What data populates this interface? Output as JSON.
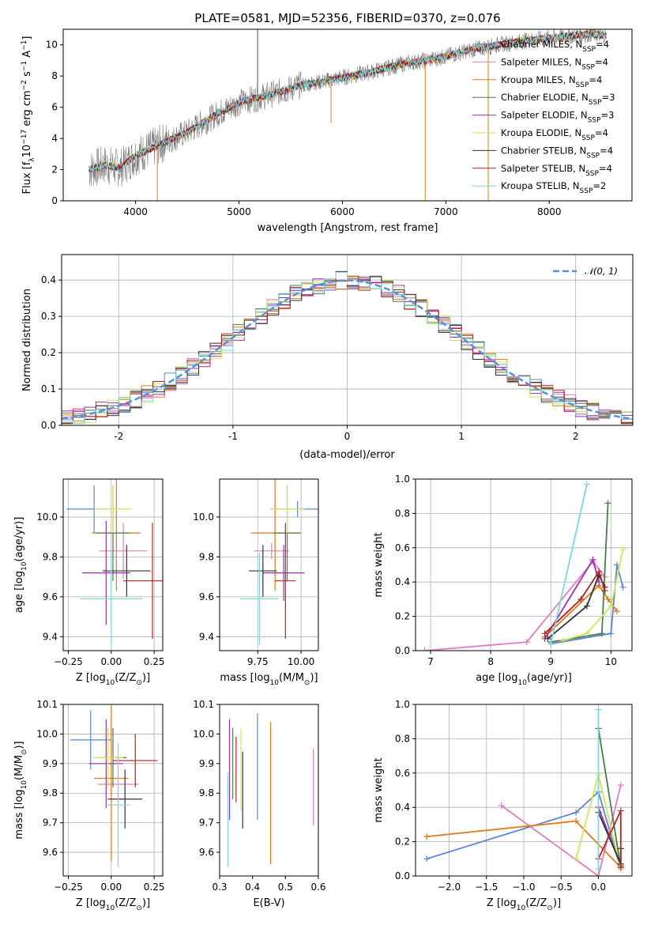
{
  "colors": {
    "Chabrier MILES": "#5b86d6",
    "Salpeter MILES": "#e07fbf",
    "Kroupa MILES": "#e07a1a",
    "Chabrier ELODIE": "#4a7d4a",
    "Salpeter ELODIE": "#9b2fae",
    "Kroupa ELODIE": "#cfe85a",
    "Chabrier STELIB": "#333333",
    "Salpeter STELIB": "#b22222",
    "Kroupa STELIB": "#7fd6dc",
    "normal": "#5b8fd6",
    "data": "#808080"
  },
  "chart_data": [
    {
      "type": "line",
      "title": "PLATE=0581, MJD=52356, FIBERID=0370, z=0.076",
      "xlabel": "wavelength [Angstrom, rest frame]",
      "ylabel": "Flux [f",
      "ylabel_parts": [
        "Flux [f",
        "λ",
        "10",
        "−17",
        " erg cm",
        "−2",
        " s",
        "−1",
        " A",
        "−1",
        "]"
      ],
      "xlim": [
        3300,
        8800
      ],
      "ylim": [
        0,
        11
      ],
      "xticks": [
        4000,
        5000,
        6000,
        7000,
        8000
      ],
      "yticks": [
        0,
        2,
        4,
        6,
        8,
        10
      ],
      "grid": false,
      "legend_position": "right",
      "legend": [
        {
          "name": "Chabrier MILES",
          "nssp": "4"
        },
        {
          "name": "Salpeter MILES",
          "nssp": "4"
        },
        {
          "name": "Kroupa MILES",
          "nssp": "4"
        },
        {
          "name": "Chabrier ELODIE",
          "nssp": "3"
        },
        {
          "name": "Salpeter ELODIE",
          "nssp": "3"
        },
        {
          "name": "Kroupa ELODIE",
          "nssp": "4"
        },
        {
          "name": "Chabrier STELIB",
          "nssp": "4"
        },
        {
          "name": "Salpeter STELIB",
          "nssp": "4"
        },
        {
          "name": "Kroupa STELIB",
          "nssp": "2"
        }
      ],
      "legend_sub": "SSP",
      "legend_prefix": ", N",
      "continuum": {
        "x": [
          3550,
          3700,
          3850,
          4000,
          4200,
          4500,
          4800,
          5000,
          5300,
          5600,
          6000,
          6300,
          6600,
          6900,
          7200,
          7500,
          7800,
          8100,
          8400,
          8550
        ],
        "y": [
          2.0,
          2.3,
          2.1,
          2.9,
          3.5,
          4.4,
          5.6,
          6.3,
          6.8,
          7.4,
          7.9,
          8.3,
          8.8,
          9.1,
          9.6,
          10.0,
          10.3,
          10.5,
          10.7,
          10.6
        ]
      },
      "spikes": [
        {
          "x": 5180,
          "y": 11
        },
        {
          "x": 4210,
          "y": 0
        },
        {
          "x": 6800,
          "y": 0
        },
        {
          "x": 7410,
          "y": 0
        },
        {
          "x": 5890,
          "y": 5.0
        }
      ]
    },
    {
      "type": "bar",
      "xlabel": "(data-model)/error",
      "ylabel": "Normed distribution",
      "xlim": [
        -2.5,
        2.5
      ],
      "ylim": [
        0,
        0.47
      ],
      "xticks": [
        -2,
        -1,
        0,
        1,
        2
      ],
      "yticks": [
        0.0,
        0.1,
        0.2,
        0.3,
        0.4
      ],
      "grid": true,
      "legend_position": "top-right",
      "normal_label": "𝒩(0, 1)",
      "bin_start": -2.5,
      "bin_width": 0.1
    },
    {
      "type": "scatter",
      "xlabel": "Z [log",
      "ylabel": "age  [log",
      "xlabel_parts": [
        "Z [log",
        "10",
        "(Z/Z",
        "⊙",
        ")]"
      ],
      "ylabel_parts": [
        "age  [log",
        "10",
        "(age/yr)]"
      ],
      "xlim": [
        -0.28,
        0.3
      ],
      "ylim": [
        9.33,
        10.19
      ],
      "xticks": [
        -0.25,
        0,
        0.25
      ],
      "xtick_labels": [
        "−0.25",
        "0.00",
        "0.25"
      ],
      "yticks": [
        9.4,
        9.6,
        9.8,
        10.0
      ],
      "grid": true,
      "points": [
        {
          "series": "Chabrier MILES",
          "x": -0.1,
          "y": 10.04,
          "xerr": 0.16,
          "yerr": 0.12
        },
        {
          "series": "Salpeter MILES",
          "x": 0.07,
          "y": 9.83,
          "xerr": 0.14,
          "yerr": 0.14
        },
        {
          "series": "Kroupa MILES",
          "x": 0.03,
          "y": 9.92,
          "xerr": 0.14,
          "yerr": 0.29
        },
        {
          "series": "Chabrier ELODIE",
          "x": 0.01,
          "y": 9.92,
          "xerr": 0.1,
          "yerr": 0.24
        },
        {
          "series": "Salpeter ELODIE",
          "x": -0.03,
          "y": 9.72,
          "xerr": 0.14,
          "yerr": 0.26
        },
        {
          "series": "Kroupa ELODIE",
          "x": 0.01,
          "y": 10.04,
          "xerr": 0.11,
          "yerr": 0.12
        },
        {
          "series": "Chabrier STELIB",
          "x": 0.09,
          "y": 9.73,
          "xerr": 0.14,
          "yerr": 0.13
        },
        {
          "series": "Salpeter STELIB",
          "x": 0.24,
          "y": 9.68,
          "xerr": 0.17,
          "yerr": 0.29
        },
        {
          "series": "Kroupa STELIB",
          "x": 0.0,
          "y": 9.59,
          "xerr": 0.18,
          "yerr": 0.23
        }
      ]
    },
    {
      "type": "scatter",
      "xlabel": "mass [log",
      "xlabel_parts": [
        "mass [log",
        "10",
        "(M/M",
        "⊙",
        ")]"
      ],
      "xlim": [
        9.53,
        10.1
      ],
      "ylim": [
        9.33,
        10.19
      ],
      "xticks": [
        9.75,
        10.0
      ],
      "xtick_labels": [
        "9.75",
        "10.00"
      ],
      "yticks": [
        9.4,
        9.6,
        9.8,
        10.0
      ],
      "grid": true,
      "points": [
        {
          "series": "Chabrier MILES",
          "x": 9.98,
          "y": 10.04,
          "xerr": 0.16,
          "yerr": 0.04
        },
        {
          "series": "Salpeter MILES",
          "x": 9.83,
          "y": 9.83,
          "xerr": 0.1,
          "yerr": 0.04
        },
        {
          "series": "Kroupa MILES",
          "x": 9.85,
          "y": 9.92,
          "xerr": 0.14,
          "yerr": 0.29
        },
        {
          "series": "Chabrier ELODIE",
          "x": 9.92,
          "y": 9.92,
          "xerr": 0.08,
          "yerr": 0.24
        },
        {
          "series": "Salpeter ELODIE",
          "x": 9.9,
          "y": 9.72,
          "xerr": 0.12,
          "yerr": 0.14
        },
        {
          "series": "Kroupa ELODIE",
          "x": 9.92,
          "y": 10.04,
          "xerr": 0.1,
          "yerr": 0.12
        },
        {
          "series": "Chabrier STELIB",
          "x": 9.78,
          "y": 9.73,
          "xerr": 0.08,
          "yerr": 0.13
        },
        {
          "series": "Salpeter STELIB",
          "x": 9.91,
          "y": 9.68,
          "xerr": 0.06,
          "yerr": 0.29
        },
        {
          "series": "Kroupa STELIB",
          "x": 9.76,
          "y": 9.59,
          "xerr": 0.11,
          "yerr": 0.23
        }
      ]
    },
    {
      "type": "line",
      "xlabel": "age  [log",
      "xlabel_parts": [
        "age  [log",
        "10",
        "(age/yr)]"
      ],
      "ylabel": "mass weight",
      "xlim": [
        6.75,
        10.35
      ],
      "ylim": [
        0,
        1.0
      ],
      "xticks": [
        7,
        8,
        9,
        10
      ],
      "yticks": [
        0.0,
        0.2,
        0.4,
        0.6,
        0.8,
        1.0
      ],
      "ytick_labels": [
        "0.0",
        "0.2",
        "0.4",
        "0.6",
        "0.8",
        "1.0"
      ],
      "grid": true,
      "series": [
        {
          "name": "Chabrier MILES",
          "x": [
            9.0,
            10.0,
            10.1,
            10.2
          ],
          "y": [
            0.04,
            0.1,
            0.5,
            0.37
          ]
        },
        {
          "name": "Salpeter MILES",
          "x": [
            6.9,
            8.6,
            9.7,
            9.9
          ],
          "y": [
            0.0,
            0.05,
            0.52,
            0.43
          ]
        },
        {
          "name": "Kroupa MILES",
          "x": [
            8.9,
            9.8,
            9.95,
            10.1
          ],
          "y": [
            0.08,
            0.38,
            0.3,
            0.23
          ]
        },
        {
          "name": "Chabrier ELODIE",
          "x": [
            9.0,
            9.85,
            9.95
          ],
          "y": [
            0.05,
            0.1,
            0.86
          ]
        },
        {
          "name": "Salpeter ELODIE",
          "x": [
            8.9,
            9.7,
            9.8
          ],
          "y": [
            0.07,
            0.53,
            0.4
          ]
        },
        {
          "name": "Kroupa ELODIE",
          "x": [
            9.2,
            9.6,
            10.0,
            10.2
          ],
          "y": [
            0.06,
            0.1,
            0.26,
            0.59
          ]
        },
        {
          "name": "Chabrier STELIB",
          "x": [
            8.95,
            9.6,
            9.8,
            9.9
          ],
          "y": [
            0.07,
            0.26,
            0.44,
            0.37
          ]
        },
        {
          "name": "Salpeter STELIB",
          "x": [
            8.9,
            9.5,
            9.8,
            9.9
          ],
          "y": [
            0.1,
            0.3,
            0.46,
            0.35
          ]
        },
        {
          "name": "Kroupa STELIB",
          "x": [
            9.0,
            9.6
          ],
          "y": [
            0.04,
            0.97
          ]
        }
      ]
    },
    {
      "type": "scatter",
      "xlabel": "Z [log",
      "xlabel_parts": [
        "Z [log",
        "10",
        "(Z/Z",
        "⊙",
        ")]"
      ],
      "ylabel": "mass [log",
      "ylabel_parts": [
        "mass [log",
        "10",
        "(M/M",
        "⊙",
        ")]"
      ],
      "xlim": [
        -0.28,
        0.3
      ],
      "ylim": [
        9.52,
        10.1
      ],
      "xticks": [
        -0.25,
        0,
        0.25
      ],
      "xtick_labels": [
        "−0.25",
        "0.00",
        "0.25"
      ],
      "yticks": [
        9.6,
        9.7,
        9.8,
        9.9,
        10.0,
        10.1
      ],
      "grid": true,
      "points": [
        {
          "series": "Chabrier MILES",
          "x": -0.12,
          "y": 9.98,
          "xerr": 0.12,
          "yerr": 0.1
        },
        {
          "series": "Salpeter MILES",
          "x": 0.04,
          "y": 9.83,
          "xerr": 0.12,
          "yerr": 0.1
        },
        {
          "series": "Kroupa MILES",
          "x": 0.0,
          "y": 9.85,
          "xerr": 0.1,
          "yerr": 0.28
        },
        {
          "series": "Chabrier ELODIE",
          "x": 0.01,
          "y": 9.92,
          "xerr": 0.08,
          "yerr": 0.1
        },
        {
          "series": "Salpeter ELODIE",
          "x": -0.03,
          "y": 9.9,
          "xerr": 0.1,
          "yerr": 0.15
        },
        {
          "series": "Kroupa ELODIE",
          "x": -0.02,
          "y": 9.92,
          "xerr": 0.09,
          "yerr": 0.1
        },
        {
          "series": "Chabrier STELIB",
          "x": 0.08,
          "y": 9.78,
          "xerr": 0.1,
          "yerr": 0.1
        },
        {
          "series": "Salpeter STELIB",
          "x": 0.14,
          "y": 9.91,
          "xerr": 0.13,
          "yerr": 0.09
        },
        {
          "series": "Kroupa STELIB",
          "x": 0.04,
          "y": 9.76,
          "xerr": 0.07,
          "yerr": 0.21
        }
      ]
    },
    {
      "type": "scatter",
      "xlabel": "E(B-V)",
      "xlim": [
        0.3,
        0.6
      ],
      "ylim": [
        9.52,
        10.1
      ],
      "xticks": [
        0.3,
        0.4,
        0.5,
        0.6
      ],
      "xtick_labels": [
        "0.3",
        "0.4",
        "0.5",
        "0.6"
      ],
      "yticks": [
        9.6,
        9.7,
        9.8,
        9.9,
        10.0,
        10.1
      ],
      "grid": false,
      "points": [
        {
          "series": "Chabrier MILES",
          "x": 0.415,
          "y": 9.89,
          "xerr": 0,
          "yerr": 0.18
        },
        {
          "series": "Salpeter MILES",
          "x": 0.585,
          "y": 9.82,
          "xerr": 0,
          "yerr": 0.13
        },
        {
          "series": "Kroupa MILES",
          "x": 0.455,
          "y": 9.8,
          "xerr": 0,
          "yerr": 0.24
        },
        {
          "series": "Chabrier ELODIE",
          "x": 0.34,
          "y": 9.9,
          "xerr": 0,
          "yerr": 0.12
        },
        {
          "series": "Salpeter ELODIE",
          "x": 0.33,
          "y": 9.88,
          "xerr": 0,
          "yerr": 0.17
        },
        {
          "series": "Kroupa ELODIE",
          "x": 0.365,
          "y": 9.88,
          "xerr": 0,
          "yerr": 0.14
        },
        {
          "series": "Chabrier STELIB",
          "x": 0.37,
          "y": 9.81,
          "xerr": 0,
          "yerr": 0.13
        },
        {
          "series": "Salpeter STELIB",
          "x": 0.35,
          "y": 9.88,
          "xerr": 0,
          "yerr": 0.11
        },
        {
          "series": "Kroupa STELIB",
          "x": 0.325,
          "y": 9.71,
          "xerr": 0,
          "yerr": 0.16
        }
      ]
    },
    {
      "type": "line",
      "xlabel": "Z [log",
      "xlabel_parts": [
        "Z [log",
        "10",
        "(Z/Z",
        "⊙",
        ")]"
      ],
      "ylabel": "mass weight",
      "xlim": [
        -2.45,
        0.45
      ],
      "ylim": [
        0,
        1.0
      ],
      "xticks": [
        -2.0,
        -1.5,
        -1.0,
        -0.5,
        0.0
      ],
      "xtick_labels": [
        "−2.0",
        "−1.5",
        "−1.0",
        "−0.5",
        "0.0"
      ],
      "yticks": [
        0.0,
        0.2,
        0.4,
        0.6,
        0.8,
        1.0
      ],
      "ytick_labels": [
        "0.0",
        "0.2",
        "0.4",
        "0.6",
        "0.8",
        "1.0"
      ],
      "grid": true,
      "series": [
        {
          "name": "Chabrier MILES",
          "x": [
            -2.3,
            -0.3,
            0.0,
            0.3
          ],
          "y": [
            0.1,
            0.37,
            0.49,
            0.04
          ]
        },
        {
          "name": "Salpeter MILES",
          "x": [
            -1.3,
            0.0,
            0.3
          ],
          "y": [
            0.41,
            0.0,
            0.53
          ]
        },
        {
          "name": "Kroupa MILES",
          "x": [
            -2.3,
            -0.3,
            0.3
          ],
          "y": [
            0.23,
            0.32,
            0.05
          ]
        },
        {
          "name": "Chabrier ELODIE",
          "x": [
            0.0,
            0.3
          ],
          "y": [
            0.86,
            0.05
          ]
        },
        {
          "name": "Salpeter ELODIE",
          "x": [
            0.0,
            0.3
          ],
          "y": [
            0.4,
            0.06
          ]
        },
        {
          "name": "Kroupa ELODIE",
          "x": [
            -0.3,
            0.0,
            0.3
          ],
          "y": [
            0.1,
            0.59,
            0.04
          ]
        },
        {
          "name": "Chabrier STELIB",
          "x": [
            0.0,
            0.3,
            0.3
          ],
          "y": [
            0.37,
            0.07,
            0.16
          ]
        },
        {
          "name": "Salpeter STELIB",
          "x": [
            0.0,
            0.3,
            0.3
          ],
          "y": [
            0.1,
            0.38,
            0.05
          ]
        },
        {
          "name": "Kroupa STELIB",
          "x": [
            0.0,
            0.0
          ],
          "y": [
            0.97,
            0.04
          ]
        }
      ]
    }
  ]
}
